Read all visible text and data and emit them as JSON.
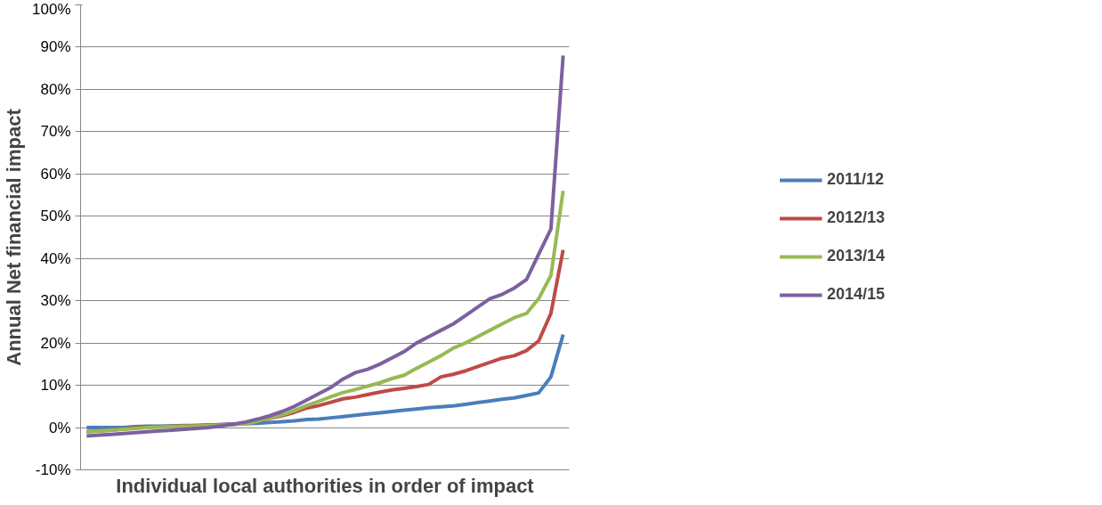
{
  "chart_data": {
    "type": "line",
    "xlabel": "Individual local authorities in order of impact",
    "ylabel": "Annual Net financial impact",
    "categories": [
      null,
      null,
      null,
      null,
      null,
      null,
      null,
      null,
      null,
      null,
      null,
      null,
      null,
      null,
      null,
      null,
      null,
      null,
      null,
      null,
      null,
      null,
      null,
      null,
      null,
      null,
      null,
      null,
      null,
      null,
      null,
      null,
      null,
      null,
      null,
      null,
      null,
      null,
      null,
      null
    ],
    "series": [
      {
        "name": "2011/12",
        "color": "#4a7ebb",
        "values": [
          0,
          0,
          0,
          0,
          0.2,
          0.3,
          0.3,
          0.4,
          0.5,
          0.5,
          0.6,
          0.7,
          0.8,
          0.9,
          1.0,
          1.2,
          1.4,
          1.6,
          1.9,
          2.0,
          2.3,
          2.6,
          2.9,
          3.2,
          3.5,
          3.8,
          4.1,
          4.4,
          4.7,
          4.9,
          5.1,
          5.5,
          5.9,
          6.3,
          6.7,
          7.0,
          7.6,
          8.2,
          12,
          22
        ]
      },
      {
        "name": "2012/13",
        "color": "#be4b48",
        "values": [
          -1,
          -0.8,
          -0.6,
          -0.3,
          0,
          0.1,
          0.2,
          0.3,
          0.4,
          0.5,
          0.6,
          0.7,
          0.8,
          1.0,
          1.5,
          2.2,
          2.8,
          3.6,
          4.6,
          5.2,
          6.0,
          6.8,
          7.2,
          7.8,
          8.4,
          8.9,
          9.3,
          9.7,
          10.2,
          12,
          12.6,
          13.4,
          14.4,
          15.4,
          16.4,
          17.0,
          18.2,
          20.5,
          27,
          42
        ]
      },
      {
        "name": "2013/14",
        "color": "#98b954",
        "values": [
          -1,
          -0.8,
          -0.6,
          -0.4,
          -0.2,
          0,
          0.1,
          0.2,
          0.3,
          0.4,
          0.5,
          0.6,
          0.7,
          0.9,
          1.5,
          2.3,
          3.0,
          4.0,
          5.2,
          6.2,
          7.3,
          8.3,
          9.0,
          9.8,
          10.6,
          11.6,
          12.4,
          14,
          15.5,
          17,
          18.8,
          20,
          21.5,
          23,
          24.5,
          26,
          27,
          30.5,
          36,
          56
        ]
      },
      {
        "name": "2014/15",
        "color": "#7d60a0",
        "values": [
          -2,
          -1.8,
          -1.6,
          -1.4,
          -1.2,
          -1,
          -0.8,
          -0.6,
          -0.4,
          -0.2,
          0,
          0.4,
          0.8,
          1.3,
          2.0,
          2.8,
          3.8,
          5.0,
          6.5,
          8,
          9.5,
          11.5,
          13,
          13.8,
          15,
          16.5,
          18,
          20,
          21.5,
          23,
          24.5,
          26.5,
          28.5,
          30.5,
          31.5,
          33,
          35,
          41,
          47,
          88
        ]
      }
    ],
    "ylim": [
      -10,
      100
    ],
    "yticks": [
      {
        "value": -10,
        "label": "-10%"
      },
      {
        "value": 0,
        "label": "0%"
      },
      {
        "value": 10,
        "label": "10%"
      },
      {
        "value": 20,
        "label": "20%"
      },
      {
        "value": 30,
        "label": "30%"
      },
      {
        "value": 40,
        "label": "40%"
      },
      {
        "value": 50,
        "label": "50%"
      },
      {
        "value": 60,
        "label": "60%"
      },
      {
        "value": 70,
        "label": "70%"
      },
      {
        "value": 80,
        "label": "80%"
      },
      {
        "value": 90,
        "label": "90%"
      },
      {
        "value": 100,
        "label": "100%"
      }
    ],
    "grid": "y",
    "legend": "right",
    "tick_labels": "y",
    "marker": "none",
    "line_style": "solid"
  }
}
